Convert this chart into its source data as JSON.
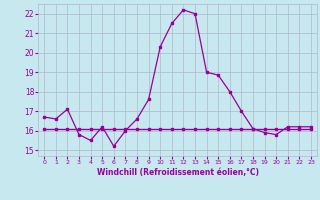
{
  "x": [
    0,
    1,
    2,
    3,
    4,
    5,
    6,
    7,
    8,
    9,
    10,
    11,
    12,
    13,
    14,
    15,
    16,
    17,
    18,
    19,
    20,
    21,
    22,
    23
  ],
  "temp": [
    16.7,
    16.6,
    17.1,
    15.8,
    15.5,
    16.2,
    15.2,
    16.0,
    16.6,
    17.6,
    20.3,
    21.5,
    22.2,
    22.0,
    19.0,
    18.85,
    18.0,
    17.0,
    16.1,
    15.9,
    15.8,
    16.2,
    16.2,
    16.2
  ],
  "windchill": [
    16.1,
    16.1,
    16.1,
    16.1,
    16.1,
    16.1,
    16.1,
    16.1,
    16.1,
    16.1,
    16.1,
    16.1,
    16.1,
    16.1,
    16.1,
    16.1,
    16.1,
    16.1,
    16.1,
    16.1,
    16.1,
    16.1,
    16.1,
    16.1
  ],
  "line_color": "#990099",
  "bg_color": "#c8e8f0",
  "grid_color": "#b0b8cc",
  "xlabel": "Windchill (Refroidissement éolien,°C)",
  "ylim": [
    14.7,
    22.5
  ],
  "xlim": [
    -0.5,
    23.5
  ],
  "yticks": [
    15,
    16,
    17,
    18,
    19,
    20,
    21,
    22
  ],
  "xticks": [
    0,
    1,
    2,
    3,
    4,
    5,
    6,
    7,
    8,
    9,
    10,
    11,
    12,
    13,
    14,
    15,
    16,
    17,
    18,
    19,
    20,
    21,
    22,
    23
  ]
}
